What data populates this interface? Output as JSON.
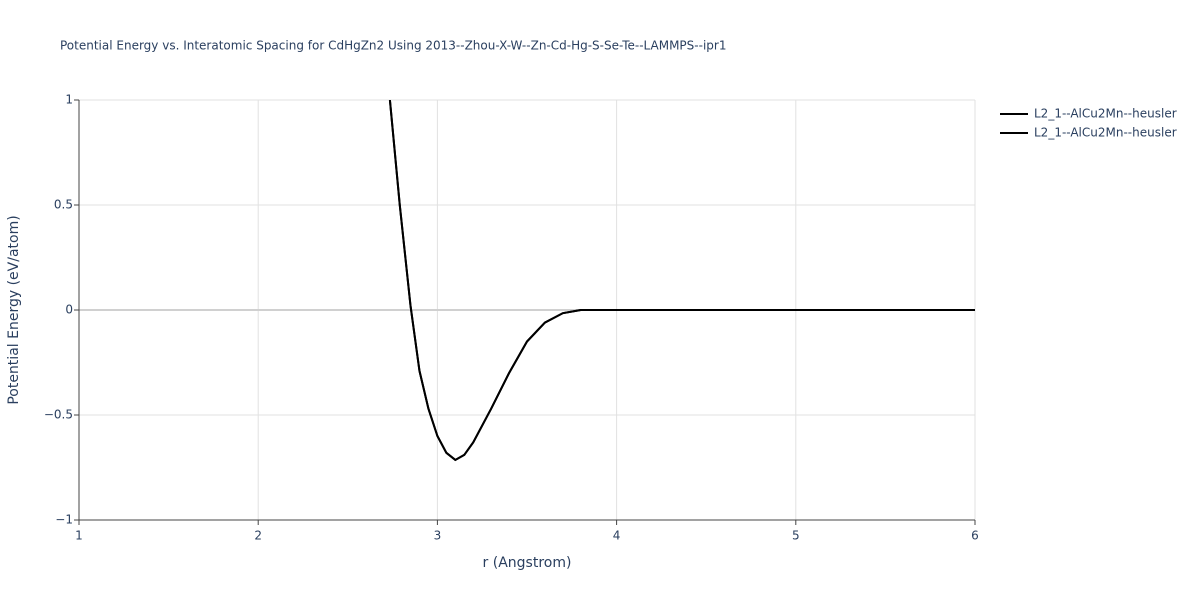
{
  "chart_data": {
    "type": "line",
    "title": "Potential Energy vs. Interatomic Spacing for CdHgZn2 Using 2013--Zhou-X-W--Zn-Cd-Hg-S-Se-Te--LAMMPS--ipr1",
    "x_label": "r (Angstrom)",
    "y_label": "Potential Energy (eV/atom)",
    "x": [
      2.735,
      2.79,
      2.85,
      2.9,
      2.95,
      3.0,
      3.05,
      3.1,
      3.15,
      3.2,
      3.3,
      3.4,
      3.5,
      3.6,
      3.7,
      3.8,
      4.0,
      5.0,
      6.0
    ],
    "series": [
      {
        "name": "L2_1--AlCu2Mn--heusler",
        "color": "#000000",
        "values": [
          1,
          0.5,
          0.02,
          -0.29,
          -0.47,
          -0.6,
          -0.68,
          -0.714,
          -0.69,
          -0.63,
          -0.47,
          -0.3,
          -0.15,
          -0.06,
          -0.015,
          0,
          0,
          0,
          0
        ]
      },
      {
        "name": "L2_1--AlCu2Mn--heusler",
        "color": "#000000",
        "values": [
          1,
          0.5,
          0.02,
          -0.29,
          -0.47,
          -0.6,
          -0.68,
          -0.714,
          -0.69,
          -0.63,
          -0.47,
          -0.3,
          -0.15,
          -0.06,
          -0.015,
          0,
          0,
          0,
          0
        ]
      }
    ],
    "xlim": [
      1,
      6
    ],
    "xticks": [
      1,
      2,
      3,
      4,
      5,
      6
    ],
    "ylim": [
      -1,
      1
    ],
    "yticks": [
      {
        "value": -1,
        "label": "−1"
      },
      {
        "value": -0.5,
        "label": "−0.5"
      },
      0,
      0.5,
      1
    ],
    "grid": true,
    "legend": "right"
  }
}
